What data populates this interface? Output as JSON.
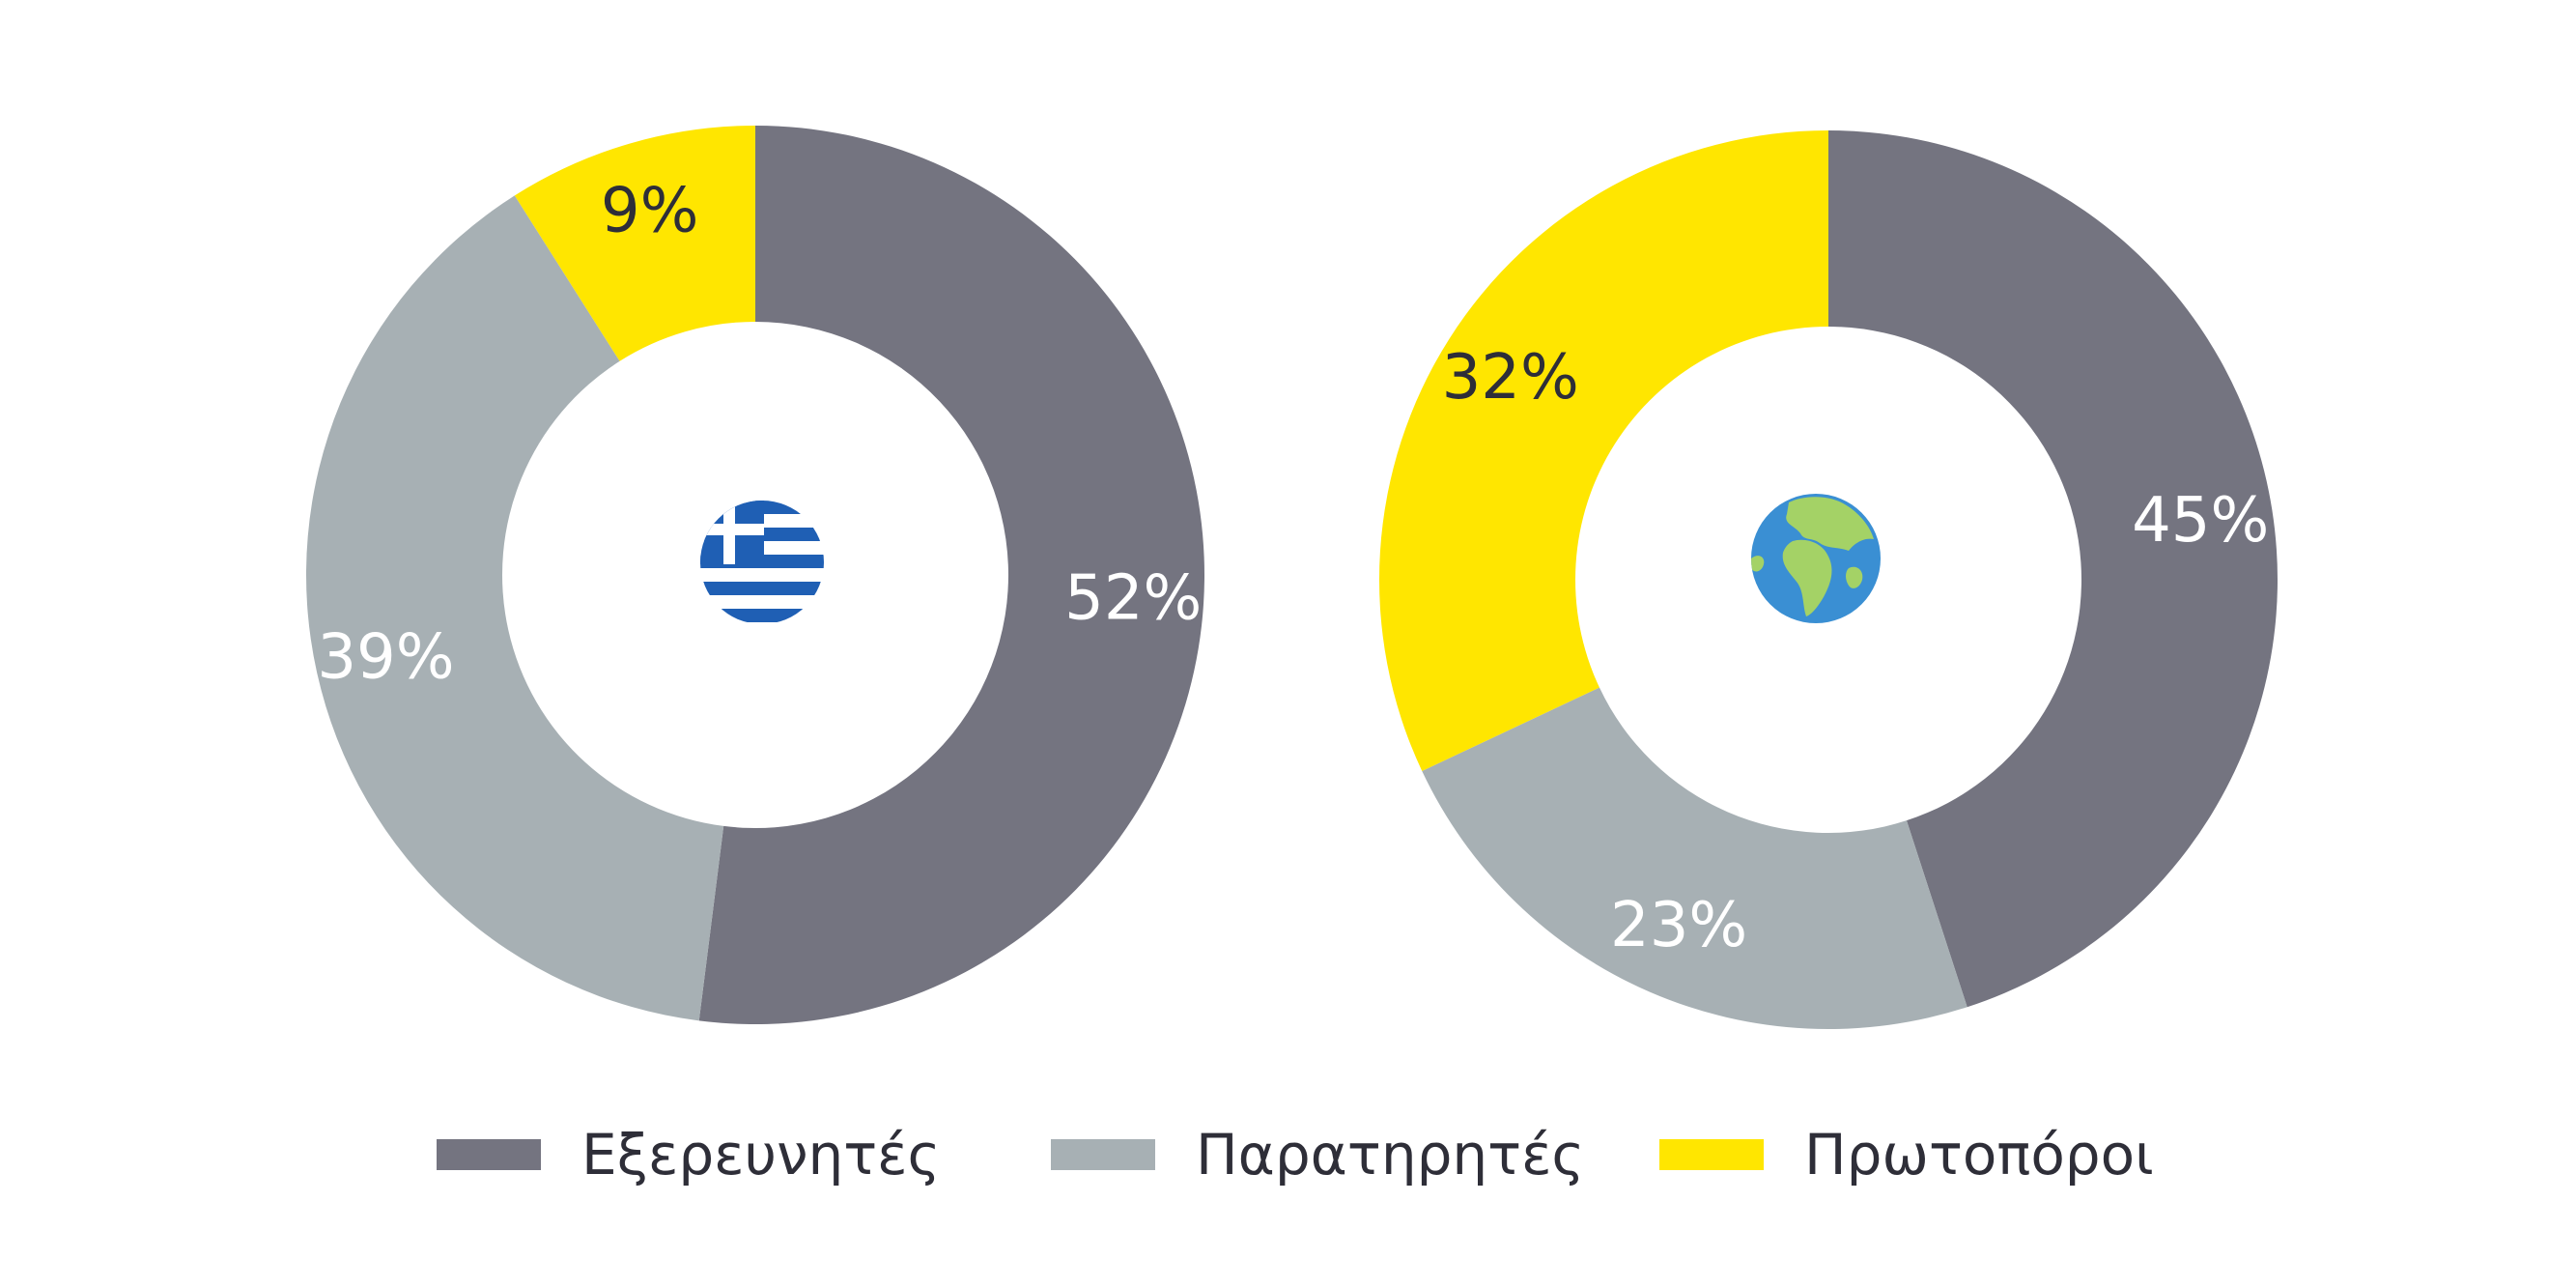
{
  "colors": {
    "explorers": "#747480",
    "observers": "#a7b0b4",
    "pioneers": "#ffe600",
    "label_dark": "#2e2e38",
    "label_light": "#ffffff"
  },
  "legend": [
    {
      "key": "explorers",
      "label": "Εξερευνητές"
    },
    {
      "key": "observers",
      "label": "Παρατηρητές"
    },
    {
      "key": "pioneers",
      "label": "Πρωτοπόροι"
    }
  ],
  "chart_data": [
    {
      "type": "pie",
      "variant": "donut",
      "center_icon": "greece-flag-icon",
      "categories": [
        "Εξερευνητές",
        "Παρατηρητές",
        "Πρωτοπόροι"
      ],
      "values": [
        52,
        39,
        9
      ],
      "labels": [
        "52%",
        "39%",
        "9%"
      ]
    },
    {
      "type": "pie",
      "variant": "donut",
      "center_icon": "globe-icon",
      "categories": [
        "Εξερευνητές",
        "Παρατηρητές",
        "Πρωτοπόροι"
      ],
      "values": [
        45,
        23,
        32
      ],
      "labels": [
        "45%",
        "23%",
        "32%"
      ]
    }
  ]
}
